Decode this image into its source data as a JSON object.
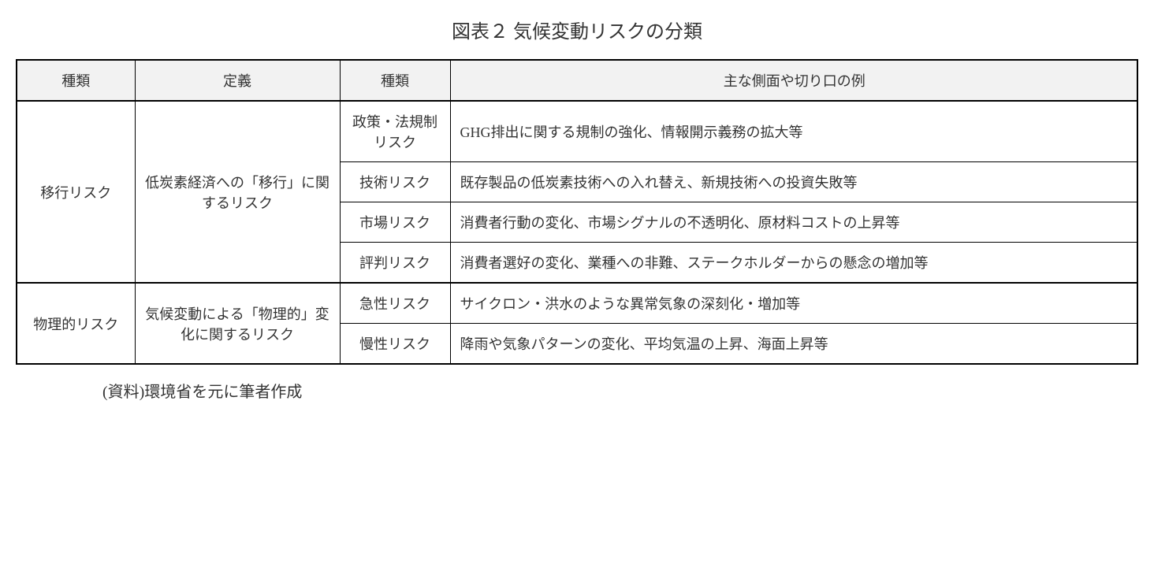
{
  "title": "図表２ 気候変動リスクの分類",
  "table": {
    "headers": {
      "col1": "種類",
      "col2": "定義",
      "col3": "種類",
      "col4": "主な側面や切り口の例"
    },
    "column_widths": [
      "150px",
      "260px",
      "140px",
      "auto"
    ],
    "header_bg_color": "#f2f2f2",
    "border_color": "#000000",
    "outer_border_width": "2px",
    "inner_border_width": "1px",
    "font_size": 18,
    "groups": [
      {
        "type": "移行リスク",
        "definition": "低炭素経済への「移行」に関するリスク",
        "rows": [
          {
            "subtype": "政策・法規制リスク",
            "example": "GHG排出に関する規制の強化、情報開示義務の拡大等"
          },
          {
            "subtype": "技術リスク",
            "example": "既存製品の低炭素技術への入れ替え、新規技術への投資失敗等"
          },
          {
            "subtype": "市場リスク",
            "example": "消費者行動の変化、市場シグナルの不透明化、原材料コストの上昇等"
          },
          {
            "subtype": "評判リスク",
            "example": "消費者選好の変化、業種への非難、ステークホルダーからの懸念の増加等"
          }
        ]
      },
      {
        "type": "物理的リスク",
        "definition": "気候変動による「物理的」変化に関するリスク",
        "rows": [
          {
            "subtype": "急性リスク",
            "example": "サイクロン・洪水のような異常気象の深刻化・増加等"
          },
          {
            "subtype": "慢性リスク",
            "example": "降雨や気象パターンの変化、平均気温の上昇、海面上昇等"
          }
        ]
      }
    ]
  },
  "source": "(資料)環境省を元に筆者作成",
  "styling": {
    "background_color": "#ffffff",
    "text_color": "#333333",
    "title_fontsize": 24,
    "source_fontsize": 20,
    "font_family": "serif"
  }
}
